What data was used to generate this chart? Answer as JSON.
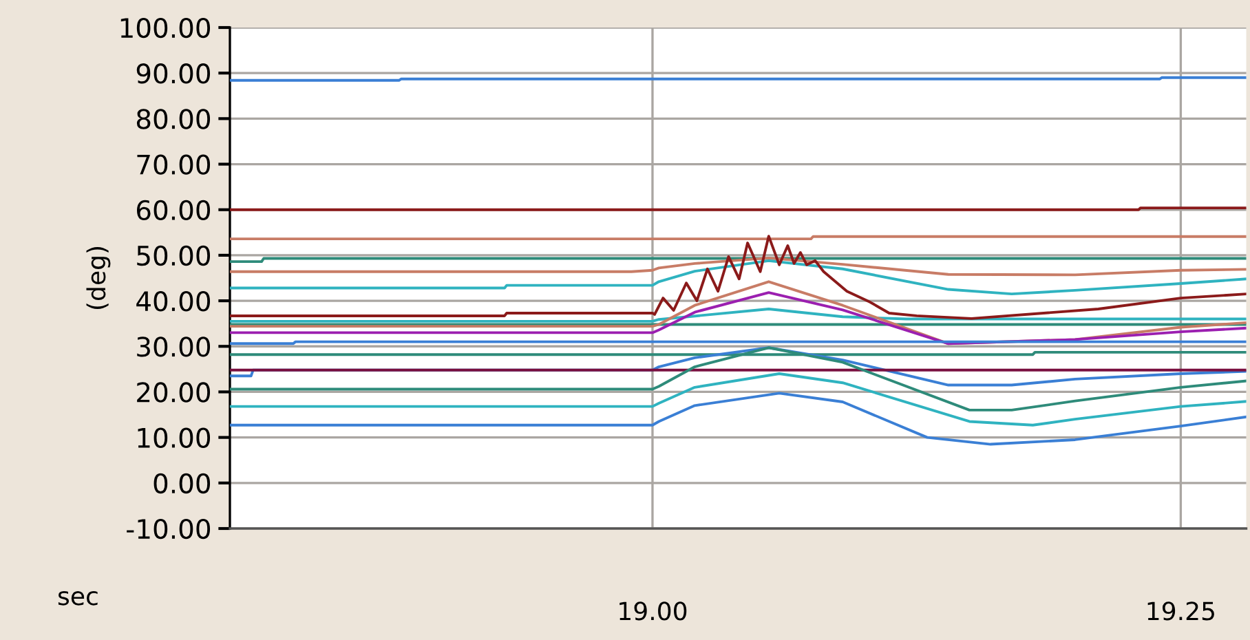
{
  "chart_data": {
    "type": "line",
    "xlabel": "sec",
    "ylabel": "(deg)",
    "xlim": [
      18.8,
      19.281
    ],
    "xticks": [
      {
        "value": 19.0,
        "label": "19.00"
      },
      {
        "value": 19.25,
        "label": "19.25"
      }
    ],
    "ylim": [
      -10,
      100
    ],
    "yticks": [
      {
        "value": -10,
        "label": "-10.00"
      },
      {
        "value": 0,
        "label": "0.00"
      },
      {
        "value": 10,
        "label": "10.00"
      },
      {
        "value": 20,
        "label": "20.00"
      },
      {
        "value": 30,
        "label": "30.00"
      },
      {
        "value": 40,
        "label": "40.00"
      },
      {
        "value": 50,
        "label": "50.00"
      },
      {
        "value": 60,
        "label": "60.00"
      },
      {
        "value": 70,
        "label": "70.00"
      },
      {
        "value": 80,
        "label": "80.00"
      },
      {
        "value": 90,
        "label": "90.00"
      },
      {
        "value": 100,
        "label": "100.00"
      }
    ],
    "grid": true,
    "line_style": "solid",
    "series": [
      {
        "color": "#3a7fd5",
        "x": [
          18.8,
          18.88,
          18.881,
          19.24,
          19.241,
          19.281
        ],
        "values": [
          88.4,
          88.4,
          88.7,
          88.7,
          89,
          89
        ]
      },
      {
        "color": "#8b1a1a",
        "x": [
          18.8,
          19.23,
          19.231,
          19.281
        ],
        "values": [
          60,
          60,
          60.4,
          60.4
        ]
      },
      {
        "color": "#c87c66",
        "x": [
          18.8,
          19.075,
          19.076,
          19.281
        ],
        "values": [
          53.6,
          53.6,
          54.1,
          54.1
        ]
      },
      {
        "color": "#2e8b7a",
        "x": [
          18.8,
          18.815,
          18.816,
          19.281
        ],
        "values": [
          48.6,
          48.6,
          49.3,
          49.3
        ]
      },
      {
        "color": "#c87c66",
        "x": [
          18.8,
          18.99,
          19.0,
          19.003,
          19.02,
          19.055,
          19.09,
          19.14,
          19.2,
          19.25,
          19.281
        ],
        "values": [
          46.4,
          46.4,
          46.7,
          47.2,
          48.2,
          49.4,
          48.0,
          45.8,
          45.7,
          46.7,
          46.9
        ]
      },
      {
        "color": "#2fb3c0",
        "x": [
          18.8,
          18.93,
          18.931,
          19.0,
          19.003,
          19.02,
          19.055,
          19.09,
          19.14,
          19.17,
          19.2,
          19.25,
          19.281
        ],
        "values": [
          42.8,
          42.8,
          43.4,
          43.4,
          44.2,
          46.5,
          48.8,
          47.0,
          42.5,
          41.5,
          42.3,
          43.8,
          44.8
        ]
      },
      {
        "color": "#2fb3c0",
        "x": [
          18.8,
          19.0,
          19.003,
          19.055,
          19.09,
          19.12,
          19.281
        ],
        "values": [
          35.5,
          35.5,
          35.9,
          38.2,
          36.5,
          36.0,
          36.0
        ]
      },
      {
        "color": "#2e8b7a",
        "x": [
          18.8,
          19.281
        ],
        "values": [
          34.8,
          34.8
        ]
      },
      {
        "color": "#c87c66",
        "x": [
          18.8,
          19.0,
          19.003,
          19.02,
          19.055,
          19.09,
          19.14,
          19.2,
          19.25,
          19.281
        ],
        "values": [
          34.4,
          34.4,
          34.8,
          39,
          44.2,
          39,
          30.6,
          31.5,
          34.2,
          35.2
        ]
      },
      {
        "color": "#9b1fb0",
        "x": [
          18.8,
          19.0,
          19.003,
          19.02,
          19.055,
          19.09,
          19.14,
          19.2,
          19.25,
          19.281
        ],
        "values": [
          33,
          33,
          33.6,
          37.5,
          41.8,
          38,
          30.6,
          31.5,
          33.2,
          34
        ]
      },
      {
        "color": "#3a7fd5",
        "x": [
          18.8,
          18.83,
          18.831,
          19.281
        ],
        "values": [
          30.6,
          30.6,
          31,
          31
        ]
      },
      {
        "color": "#2e8b7a",
        "x": [
          18.8,
          19.18,
          19.181,
          19.281
        ],
        "values": [
          28.2,
          28.2,
          28.7,
          28.7
        ]
      },
      {
        "color": "#3a7fd5",
        "x": [
          18.8,
          18.81,
          18.811,
          19.0,
          19.003,
          19.02,
          19.055,
          19.09,
          19.14,
          19.17,
          19.2,
          19.25,
          19.281
        ],
        "values": [
          23.5,
          23.5,
          24.8,
          24.8,
          25.5,
          27.5,
          29.7,
          27,
          21.5,
          21.5,
          22.8,
          24,
          24.5
        ]
      },
      {
        "color": "#7a1040",
        "x": [
          18.8,
          19.281
        ],
        "values": [
          24.8,
          24.8
        ]
      },
      {
        "color": "#2e8b7a",
        "x": [
          18.8,
          19.0,
          19.003,
          19.02,
          19.055,
          19.09,
          19.15,
          19.17,
          19.2,
          19.25,
          19.281
        ],
        "values": [
          20.6,
          20.6,
          21.2,
          25.5,
          29.7,
          26.5,
          16,
          16,
          18,
          21,
          22.4
        ]
      },
      {
        "color": "#2fb3c0",
        "x": [
          18.8,
          19.0,
          19.003,
          19.02,
          19.06,
          19.09,
          19.15,
          19.18,
          19.2,
          19.25,
          19.281
        ],
        "values": [
          16.8,
          16.8,
          17.5,
          21,
          24,
          22,
          13.5,
          12.7,
          14,
          16.8,
          17.9
        ]
      },
      {
        "color": "#3a7fd5",
        "x": [
          18.8,
          19.0,
          19.003,
          19.02,
          19.06,
          19.09,
          19.13,
          19.16,
          19.2,
          19.25,
          19.281
        ],
        "values": [
          12.7,
          12.7,
          13.5,
          17,
          19.7,
          17.8,
          10,
          8.5,
          9.5,
          12.5,
          14.5
        ]
      },
      {
        "color": "#8b1a1a",
        "x": [
          18.8,
          18.93,
          18.931,
          19.0,
          19.001,
          19.005,
          19.01,
          19.016,
          19.021,
          19.026,
          19.031,
          19.036,
          19.041,
          19.045,
          19.051,
          19.055,
          19.06,
          19.064,
          19.067,
          19.07,
          19.073,
          19.077,
          19.081,
          19.092,
          19.103,
          19.112,
          19.125,
          19.151,
          19.211,
          19.25,
          19.281
        ],
        "values": [
          36.7,
          36.7,
          37.3,
          37.3,
          37.0,
          40.6,
          37.9,
          43.9,
          40.0,
          47.0,
          42.1,
          49.7,
          44.8,
          52.7,
          46.4,
          54.2,
          47.9,
          52.1,
          48.2,
          50.6,
          47.9,
          48.8,
          46.4,
          42.1,
          39.7,
          37.3,
          36.7,
          36.1,
          38.2,
          40.6,
          41.5
        ]
      }
    ]
  }
}
